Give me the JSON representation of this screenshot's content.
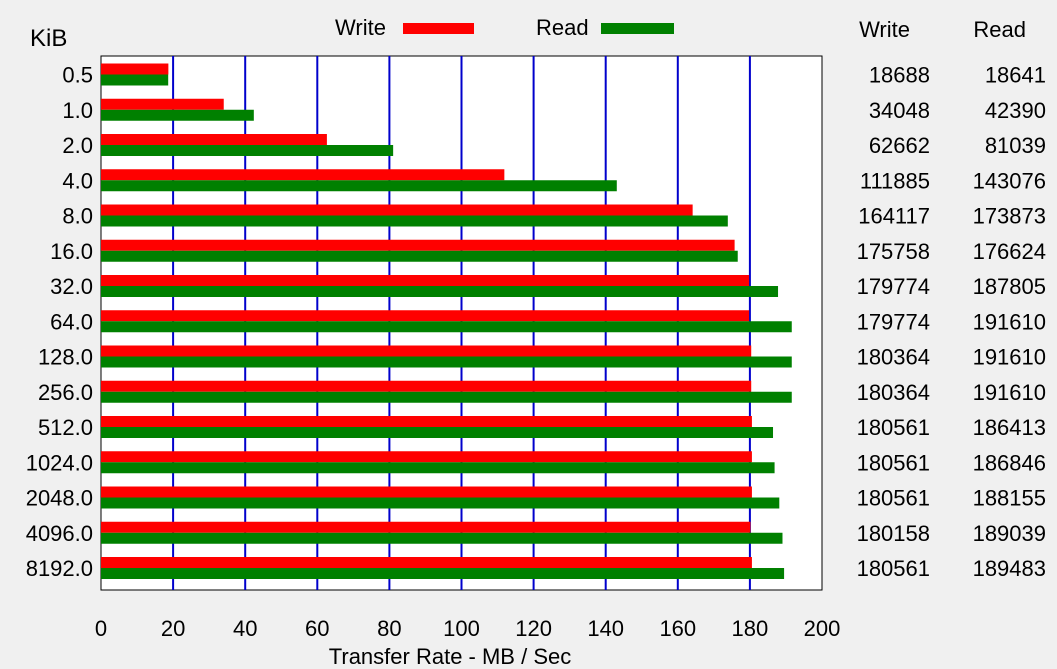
{
  "chart_data": {
    "type": "bar",
    "orientation": "horizontal",
    "unit_label": "KiB",
    "categories": [
      "0.5",
      "1.0",
      "2.0",
      "4.0",
      "8.0",
      "16.0",
      "32.0",
      "64.0",
      "128.0",
      "256.0",
      "512.0",
      "1024.0",
      "2048.0",
      "4096.0",
      "8192.0"
    ],
    "series": [
      {
        "name": "Write",
        "color": "#ff0000",
        "values": [
          18688,
          34048,
          62662,
          111885,
          164117,
          175758,
          179774,
          179774,
          180364,
          180364,
          180561,
          180561,
          180561,
          180158,
          180561
        ]
      },
      {
        "name": "Read",
        "color": "#008000",
        "values": [
          18641,
          42390,
          81039,
          143076,
          173873,
          176624,
          187805,
          191610,
          191610,
          191610,
          186413,
          186846,
          188155,
          189039,
          189483
        ]
      }
    ],
    "value_scale_note": "",
    "xlabel": "Transfer Rate - MB / Sec",
    "xlim": [
      0,
      200
    ],
    "xticks": [
      0,
      20,
      40,
      60,
      80,
      100,
      120,
      140,
      160,
      180,
      200
    ],
    "grid": true,
    "grid_color": "#0000cc",
    "legend_position": "top-center",
    "table_headers": [
      "Write",
      "Read"
    ]
  }
}
